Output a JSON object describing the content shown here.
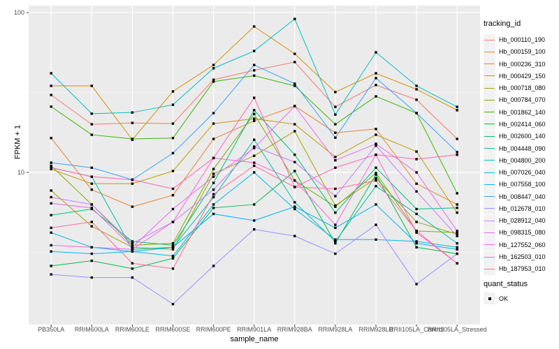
{
  "chart_data": {
    "type": "line",
    "title": "",
    "xlabel": "sample_name",
    "ylabel": "FPKM + 1",
    "y_scale": "log10",
    "ylim": [
      1.12,
      110
    ],
    "yticks": [
      {
        "label": "100",
        "value": 100
      },
      {
        "label": "10",
        "value": 10
      }
    ],
    "minor_gridlines": [
      31.62,
      3.162
    ],
    "grid": "on",
    "legend_position": "right",
    "point_marker": "black-square",
    "categories": [
      "PB350LA",
      "RRIM600LA",
      "RRIM600LE",
      "RRIM600SE",
      "RRIM600PE",
      "RRIM901LA",
      "RRIM928BA",
      "RRIM928LA",
      "RRIM928LB",
      "RRII105LA_Control",
      "RRII105LA_Stressed"
    ],
    "series": [
      {
        "name": "Hb_000110_190",
        "color": "#F8766D",
        "values": [
          30.5,
          20.0,
          20.4,
          20.2,
          38.0,
          43.5,
          49.0,
          25.7,
          35.2,
          28.5,
          16.2
        ]
      },
      {
        "name": "Hb_000159_100",
        "color": "#EA8331",
        "values": [
          16.4,
          7.8,
          6.1,
          7.2,
          16.2,
          21.0,
          26.0,
          17.7,
          18.7,
          8.5,
          6.3
        ]
      },
      {
        "name": "Hb_000236_310",
        "color": "#D89000",
        "values": [
          34.8,
          34.8,
          16.0,
          32.1,
          47.0,
          81.8,
          55.2,
          31.8,
          41.7,
          33.1,
          24.5
        ]
      },
      {
        "name": "Hb_000429_150",
        "color": "#C09B00",
        "values": [
          10.5,
          8.5,
          8.5,
          10.2,
          20.2,
          21.7,
          20.0,
          12.5,
          17.2,
          13.5,
          5.6
        ]
      },
      {
        "name": "Hb_000718_080",
        "color": "#A3A500",
        "values": [
          7.7,
          4.6,
          3.4,
          3.3,
          9.8,
          12.7,
          18.1,
          6.2,
          9.2,
          4.9,
          4.1
        ]
      },
      {
        "name": "Hb_000784_070",
        "color": "#7CAE00",
        "values": [
          11.0,
          6.3,
          3.5,
          3.6,
          10.5,
          23.2,
          8.9,
          6.1,
          9.9,
          4.3,
          4.2
        ]
      },
      {
        "name": "Hb_001862_140",
        "color": "#39B600",
        "values": [
          25.8,
          17.2,
          16.2,
          16.4,
          37.0,
          40.3,
          34.8,
          20.0,
          29.9,
          23.5,
          7.4
        ]
      },
      {
        "name": "Hb_002414_060",
        "color": "#00BB4E",
        "values": [
          2.6,
          2.8,
          2.5,
          2.9,
          6.0,
          6.3,
          10.2,
          3.6,
          9.7,
          3.4,
          3.1
        ]
      },
      {
        "name": "Hb_002600_140",
        "color": "#00BF7D",
        "values": [
          5.4,
          5.9,
          3.7,
          3.5,
          8.6,
          24.5,
          12.9,
          5.6,
          10.7,
          5.9,
          6.0
        ]
      },
      {
        "name": "Hb_004448_090",
        "color": "#00C1A3",
        "values": [
          10.7,
          9.4,
          3.3,
          3.4,
          7.0,
          16.0,
          6.5,
          3.7,
          8.2,
          5.5,
          3.6
        ]
      },
      {
        "name": "Hb_004800_200",
        "color": "#00BFC4",
        "values": [
          41.7,
          23.3,
          23.7,
          26.5,
          44.8,
          57.5,
          91.2,
          23.0,
          56.4,
          34.8,
          25.7
        ]
      },
      {
        "name": "Hb_007026_040",
        "color": "#00BAE0",
        "values": [
          4.2,
          3.4,
          3.2,
          3.0,
          6.3,
          10.0,
          5.9,
          3.8,
          3.8,
          3.7,
          3.4
        ]
      },
      {
        "name": "Hb_007558_100",
        "color": "#00B0F6",
        "values": [
          3.2,
          3.1,
          3.2,
          3.4,
          5.5,
          5.0,
          6.1,
          4.5,
          6.3,
          3.6,
          3.3
        ]
      },
      {
        "name": "Hb_008447_040",
        "color": "#35A2FF",
        "values": [
          11.5,
          10.7,
          9.0,
          13.2,
          23.5,
          47.0,
          35.9,
          16.5,
          38.9,
          23.5,
          13.4
        ]
      },
      {
        "name": "Hb_012678_010",
        "color": "#9590FF",
        "values": [
          2.3,
          2.2,
          2.2,
          1.5,
          2.6,
          4.4,
          4.0,
          3.1,
          4.7,
          2.0,
          3.1
        ]
      },
      {
        "name": "Hb_028912_040",
        "color": "#C77CFF",
        "values": [
          7.0,
          6.3,
          3.6,
          4.9,
          7.8,
          14.5,
          11.6,
          7.1,
          14.7,
          7.6,
          4.0
        ]
      },
      {
        "name": "Hb_098315_080",
        "color": "#E76BF3",
        "values": [
          6.4,
          6.0,
          3.4,
          5.9,
          9.4,
          14.2,
          26.0,
          11.9,
          15.1,
          10.0,
          4.3
        ]
      },
      {
        "name": "Hb_127552_060",
        "color": "#FA62DB",
        "values": [
          3.5,
          3.4,
          3.3,
          4.9,
          12.3,
          11.5,
          8.9,
          4.7,
          12.9,
          4.2,
          2.7
        ]
      },
      {
        "name": "Hb_162503_010",
        "color": "#FF62BC",
        "values": [
          10.7,
          9.4,
          9.0,
          7.9,
          12.3,
          29.3,
          8.1,
          10.7,
          12.9,
          12.1,
          12.9
        ]
      },
      {
        "name": "Hb_187953_010",
        "color": "#FF6A98",
        "values": [
          4.5,
          4.9,
          2.7,
          2.5,
          7.3,
          11.0,
          8.1,
          7.9,
          8.9,
          4.3,
          2.7
        ]
      }
    ],
    "legend": {
      "title": "tracking_id"
    },
    "quant_legend": {
      "title": "quant_status",
      "items": [
        {
          "label": "OK",
          "marker": "black-square"
        }
      ]
    }
  },
  "colors": {
    "panel_bg": "#EBEBEB",
    "gridline": "#FFFFFF",
    "point": "#000000",
    "tick_text": "#4D4D4D",
    "legend_key_bg": "#F2F2F2"
  }
}
